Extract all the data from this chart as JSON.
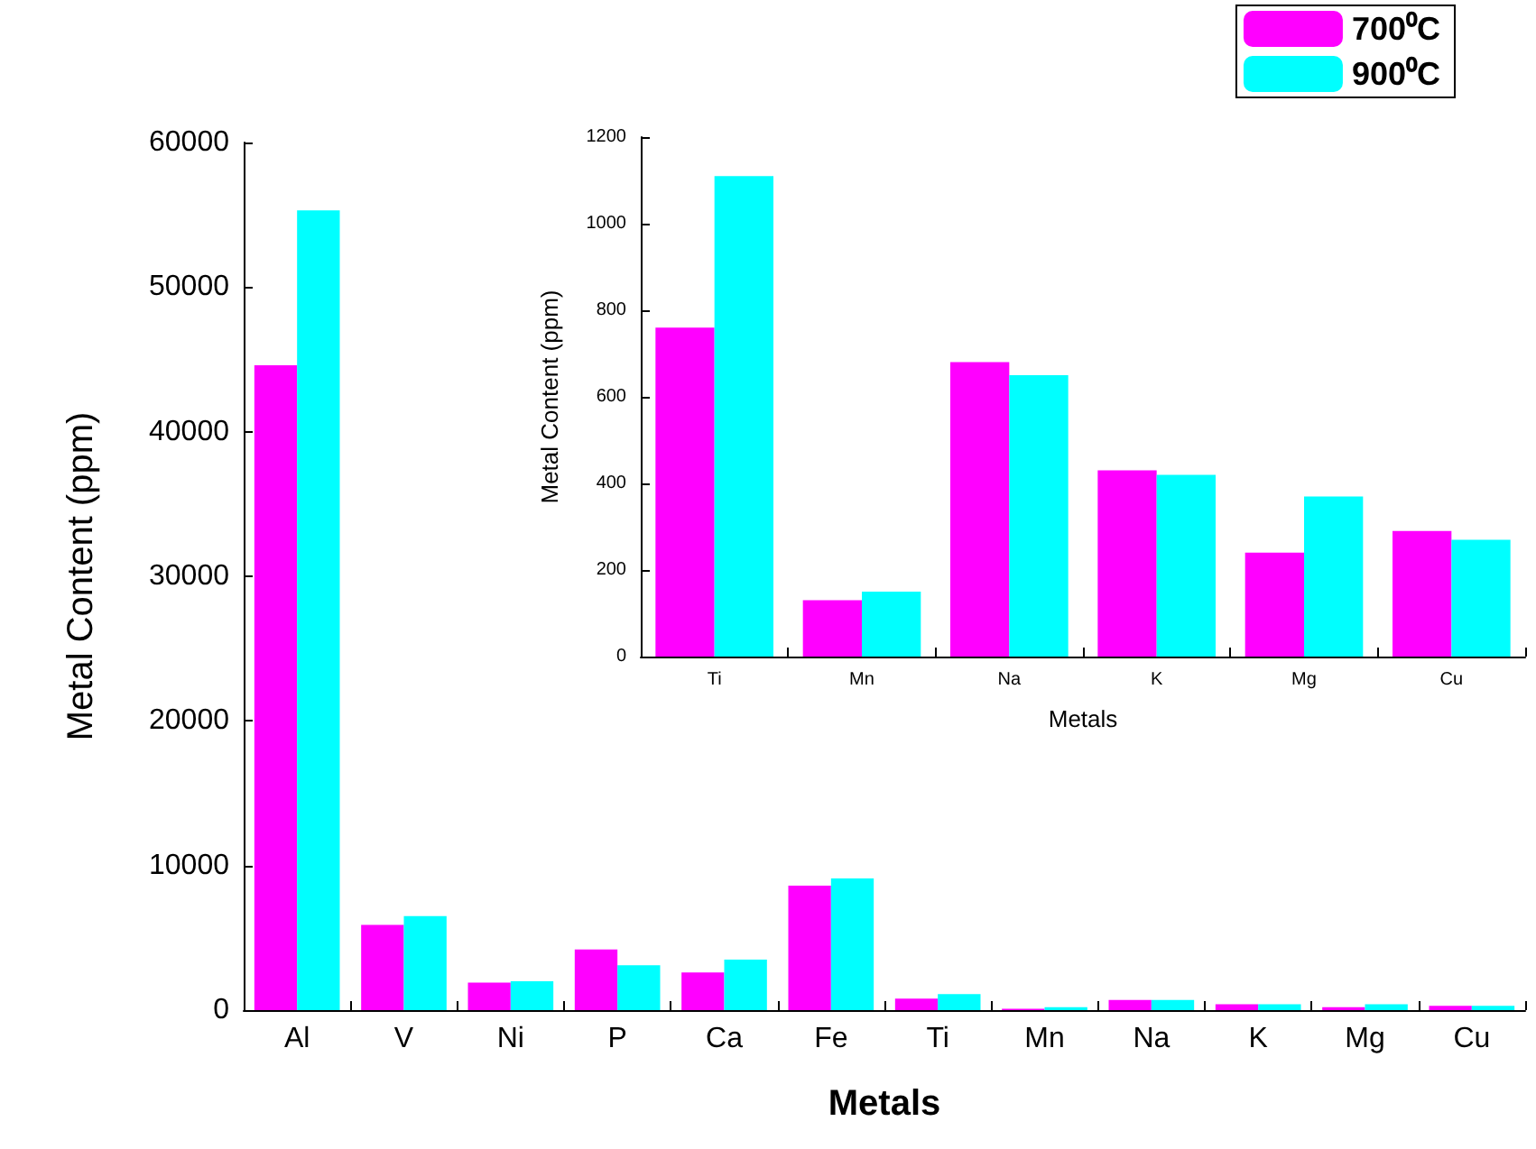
{
  "chart_data": [
    {
      "type": "bar",
      "xlabel": "Metals",
      "ylabel": "Metal Content (ppm)",
      "categories": [
        "Al",
        "V",
        "Ni",
        "P",
        "Ca",
        "Fe",
        "Ti",
        "Mn",
        "Na",
        "K",
        "Mg",
        "Cu"
      ],
      "series": [
        {
          "name": "700⁰C",
          "color": "#ff00ff",
          "values": [
            44600,
            5900,
            1900,
            4200,
            2600,
            8600,
            800,
            100,
            700,
            400,
            200,
            300
          ]
        },
        {
          "name": "900⁰C",
          "color": "#00ffff",
          "values": [
            55300,
            6500,
            2000,
            3100,
            3500,
            9100,
            1100,
            200,
            700,
            400,
            400,
            300
          ]
        }
      ],
      "ylim": [
        0,
        60000
      ],
      "yticks": [
        0,
        10000,
        20000,
        30000,
        40000,
        50000,
        60000
      ],
      "grid": false,
      "legend": "top right"
    },
    {
      "type": "bar",
      "xlabel": "Metals",
      "ylabel": "Metal Content (ppm)",
      "categories": [
        "Ti",
        "Mn",
        "Na",
        "K",
        "Mg",
        "Cu"
      ],
      "series": [
        {
          "color": "#ff00ff",
          "values": [
            760,
            130,
            680,
            430,
            240,
            290
          ]
        },
        {
          "color": "#00ffff",
          "values": [
            1110,
            150,
            650,
            420,
            370,
            270
          ]
        }
      ],
      "ylim": [
        0,
        1200
      ],
      "yticks": [
        0,
        200,
        400,
        600,
        800,
        1000,
        1200
      ],
      "grid": false
    }
  ]
}
